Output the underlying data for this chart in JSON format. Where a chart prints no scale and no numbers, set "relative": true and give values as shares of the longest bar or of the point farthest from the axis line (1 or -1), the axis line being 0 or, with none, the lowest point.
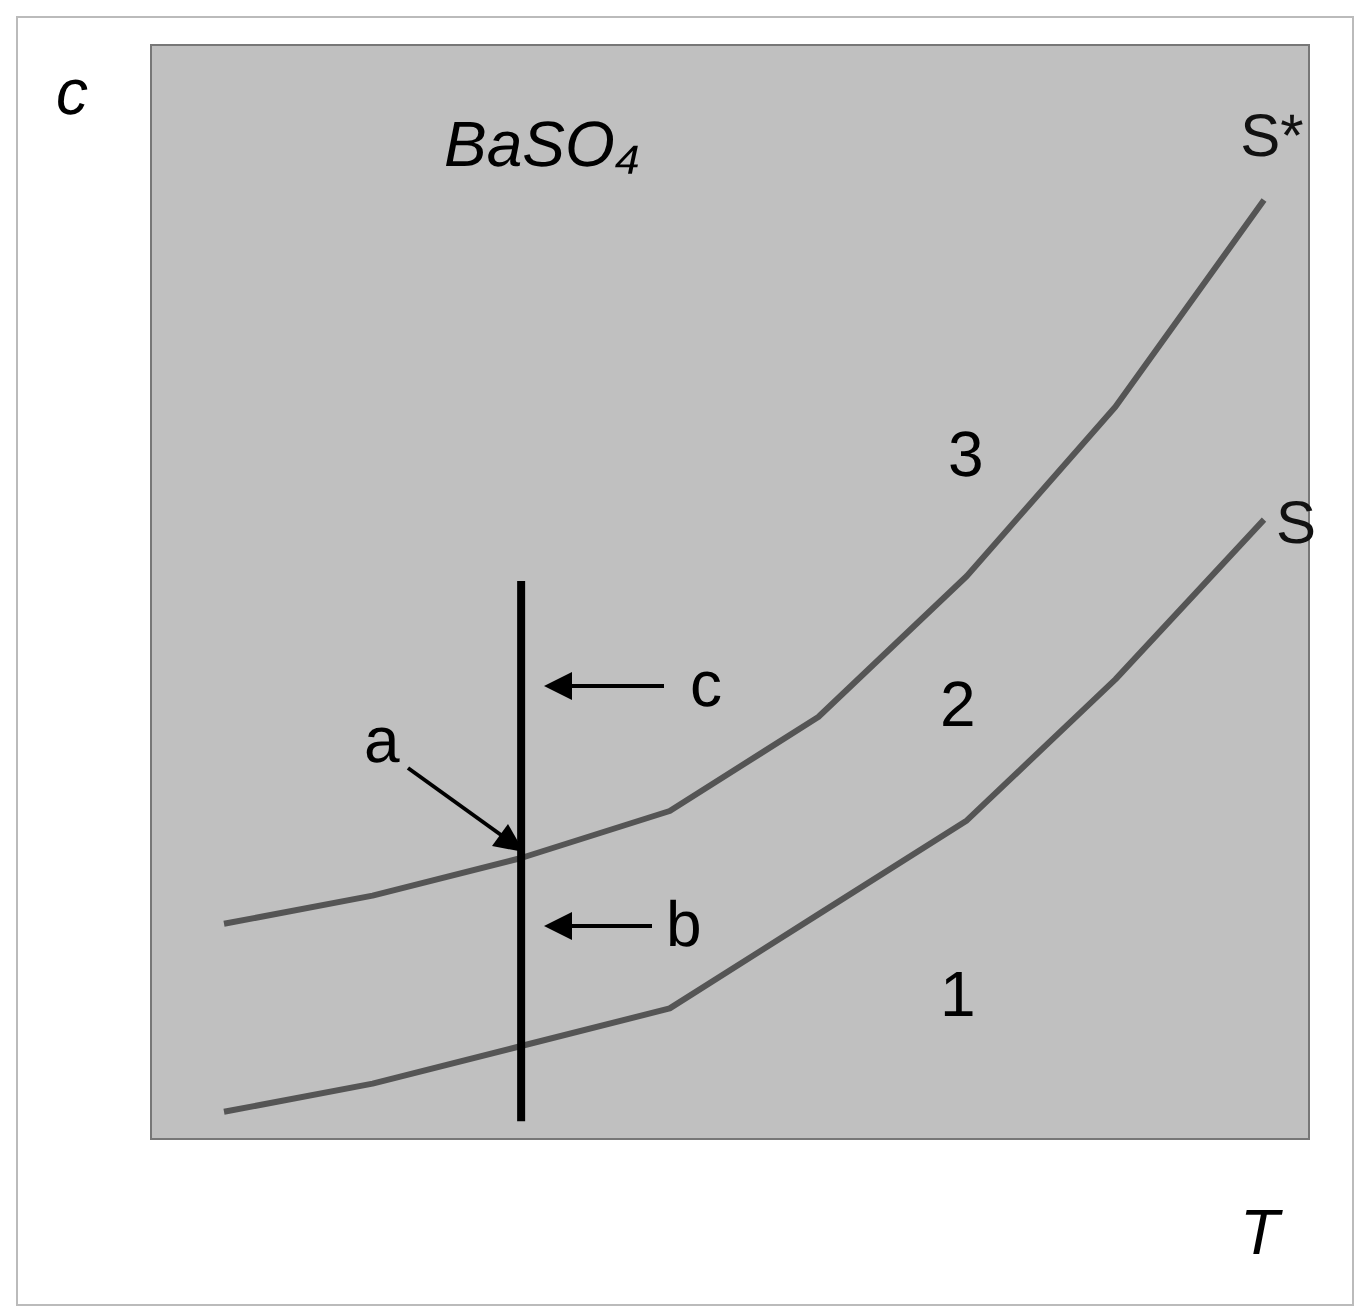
{
  "chart_data": {
    "type": "line",
    "relative": true,
    "xlabel": "T",
    "ylabel": "c",
    "categories": [
      null,
      null,
      null,
      null,
      null,
      null,
      null,
      null
    ],
    "series": [
      {
        "name": "S*",
        "color": "#555555",
        "values": [
          0.23,
          0.26,
          0.3,
          0.35,
          0.45,
          0.6,
          0.78,
          1
        ]
      },
      {
        "name": "S",
        "color": "#555555",
        "values": [
          0.03,
          0.06,
          0.1,
          0.14,
          0.24,
          0.34,
          0.49,
          0.66
        ]
      }
    ],
    "annotations": [
      "BaSO₄",
      "3",
      "2",
      "1",
      "a",
      "b",
      "c"
    ],
    "marker": "none",
    "line_style": "solid",
    "grid": false
  }
}
